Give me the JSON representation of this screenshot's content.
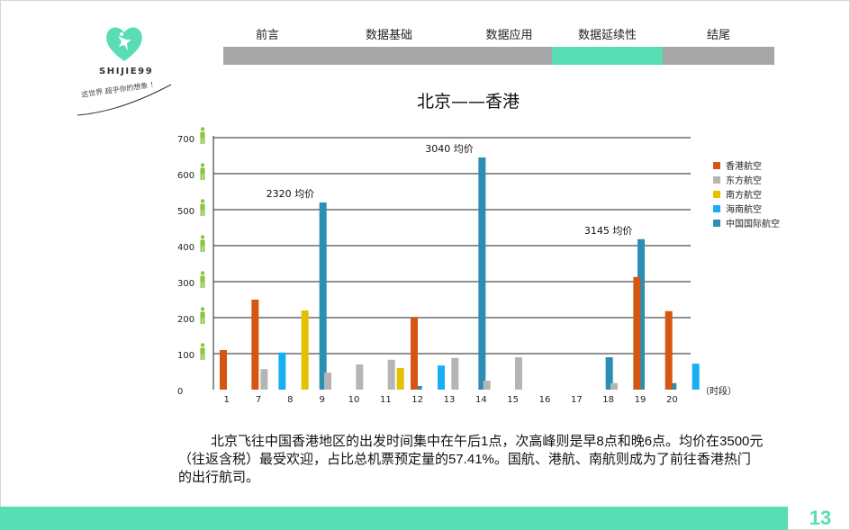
{
  "logo": {
    "name": "SHIJIE99",
    "slogan": "这世界 超乎你的想象 ！"
  },
  "nav": {
    "tabs": [
      {
        "label": "前言",
        "active": false
      },
      {
        "label": "数据基础",
        "active": false
      },
      {
        "label": "数据应用",
        "active": false
      },
      {
        "label": "数据延续性",
        "active": true
      },
      {
        "label": "结尾",
        "active": false
      }
    ]
  },
  "colors": {
    "accent": "#58ddb4",
    "nav_inactive": "#a7a7a7"
  },
  "chart_data": {
    "type": "bar",
    "title": "北京——香港",
    "xlabel": "（时段）",
    "ylabel": "",
    "ylim": [
      0,
      700
    ],
    "yticks": [
      0,
      100,
      200,
      300,
      400,
      500,
      600,
      700
    ],
    "y_icon": "person-icon",
    "grid": true,
    "legend_position": "right",
    "categories": [
      "1",
      "7",
      "8",
      "9",
      "10",
      "11",
      "12",
      "13",
      "14",
      "15",
      "16",
      "17",
      "18",
      "19",
      "20"
    ],
    "series": [
      {
        "name": "香港航空",
        "color": "#d55610",
        "values": [
          110,
          250,
          0,
          0,
          0,
          0,
          200,
          0,
          0,
          0,
          0,
          0,
          0,
          313,
          218
        ]
      },
      {
        "name": "东方航空",
        "color": "#b5b5b5",
        "values": [
          0,
          57,
          0,
          47,
          70,
          83,
          0,
          88,
          25,
          90,
          0,
          0,
          18,
          0,
          0
        ]
      },
      {
        "name": "南方航空",
        "color": "#e3c000",
        "values": [
          0,
          0,
          220,
          0,
          0,
          60,
          0,
          0,
          0,
          0,
          0,
          0,
          0,
          0,
          0
        ]
      },
      {
        "name": "海南航空",
        "color": "#18aef2",
        "values": [
          0,
          103,
          0,
          0,
          0,
          0,
          67,
          0,
          0,
          0,
          0,
          0,
          0,
          0,
          72
        ]
      },
      {
        "name": "中国国际航空",
        "color": "#2b8fb5",
        "values": [
          0,
          0,
          520,
          0,
          0,
          10,
          0,
          645,
          0,
          0,
          0,
          90,
          418,
          18,
          0
        ]
      }
    ],
    "annotations": [
      {
        "text": "2320 均价",
        "category": "8",
        "value": 520
      },
      {
        "text": "3040 均价",
        "category": "13",
        "value": 645
      },
      {
        "text": "3145 均价",
        "category": "18",
        "value": 418
      }
    ]
  },
  "caption": "北京飞往中国香港地区的出发时间集中在午后1点，次高峰则是早8点和晚6点。均价在3500元（往返含税）最受欢迎，占比总机票预定量的57.41%。国航、港航、南航则成为了前往香港热门的出行航司。",
  "page_number": "13"
}
